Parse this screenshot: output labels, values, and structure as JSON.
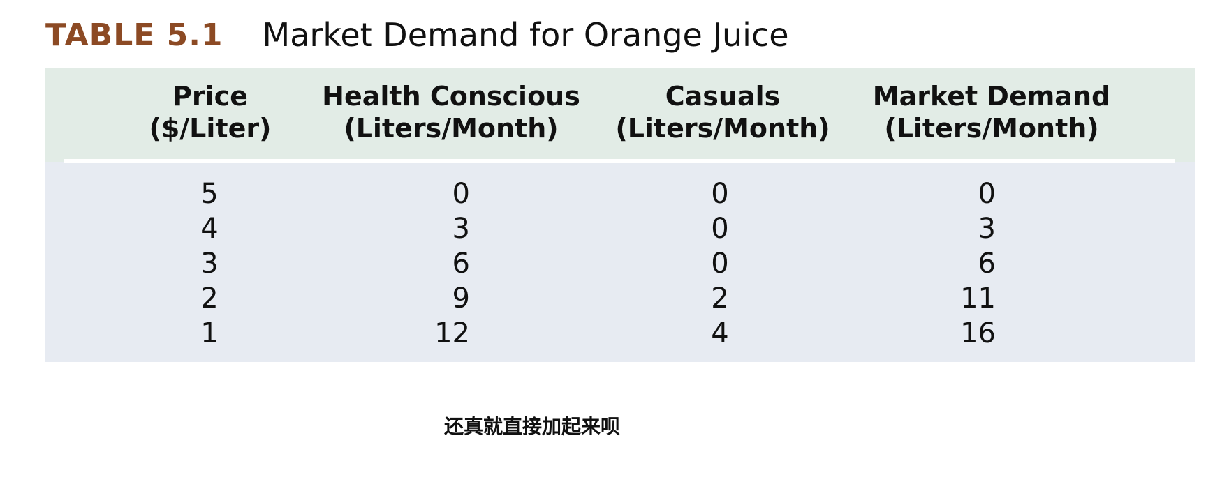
{
  "title": {
    "label": "TABLE 5.1",
    "caption": "Market Demand for Orange Juice"
  },
  "colors": {
    "label": "#8c4a24",
    "header_band": "#e2ece6",
    "body_band": "#e7ebf2"
  },
  "columns": [
    {
      "line1": "Price",
      "line2": "($/Liter)"
    },
    {
      "line1": "Health Conscious",
      "line2": "(Liters/Month)"
    },
    {
      "line1": "Casuals",
      "line2": "(Liters/Month)"
    },
    {
      "line1": "Market Demand",
      "line2": "(Liters/Month)"
    }
  ],
  "rows": [
    {
      "price": "5",
      "health_conscious": "0",
      "casuals": "0",
      "market_demand": "0"
    },
    {
      "price": "4",
      "health_conscious": "3",
      "casuals": "0",
      "market_demand": "3"
    },
    {
      "price": "3",
      "health_conscious": "6",
      "casuals": "0",
      "market_demand": "6"
    },
    {
      "price": "2",
      "health_conscious": "9",
      "casuals": "2",
      "market_demand": "11"
    },
    {
      "price": "1",
      "health_conscious": "12",
      "casuals": "4",
      "market_demand": "16"
    }
  ],
  "note": "还真就直接加起来呗"
}
